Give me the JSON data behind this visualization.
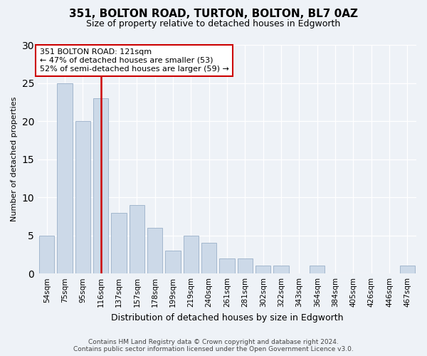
{
  "title1": "351, BOLTON ROAD, TURTON, BOLTON, BL7 0AZ",
  "title2": "Size of property relative to detached houses in Edgworth",
  "xlabel": "Distribution of detached houses by size in Edgworth",
  "ylabel": "Number of detached properties",
  "categories": [
    "54sqm",
    "75sqm",
    "95sqm",
    "116sqm",
    "137sqm",
    "157sqm",
    "178sqm",
    "199sqm",
    "219sqm",
    "240sqm",
    "261sqm",
    "281sqm",
    "302sqm",
    "322sqm",
    "343sqm",
    "364sqm",
    "384sqm",
    "405sqm",
    "426sqm",
    "446sqm",
    "467sqm"
  ],
  "values": [
    5,
    25,
    20,
    23,
    8,
    9,
    6,
    3,
    5,
    4,
    2,
    2,
    1,
    1,
    0,
    1,
    0,
    0,
    0,
    0,
    1
  ],
  "bar_color": "#ccd9e8",
  "bar_edge_color": "#9ab0c8",
  "vline_index": 3,
  "vline_color": "#cc0000",
  "annotation_text": "351 BOLTON ROAD: 121sqm\n← 47% of detached houses are smaller (53)\n52% of semi-detached houses are larger (59) →",
  "annotation_box_color": "#ffffff",
  "annotation_box_edge": "#cc0000",
  "ylim": [
    0,
    30
  ],
  "yticks": [
    0,
    5,
    10,
    15,
    20,
    25,
    30
  ],
  "footer_line1": "Contains HM Land Registry data © Crown copyright and database right 2024.",
  "footer_line2": "Contains public sector information licensed under the Open Government Licence v3.0.",
  "background_color": "#eef2f7",
  "plot_background": "#eef2f7",
  "grid_color": "#ffffff",
  "title1_fontsize": 11,
  "title2_fontsize": 9,
  "xlabel_fontsize": 9,
  "ylabel_fontsize": 8,
  "tick_fontsize": 7.5,
  "annotation_fontsize": 8,
  "footer_fontsize": 6.5
}
